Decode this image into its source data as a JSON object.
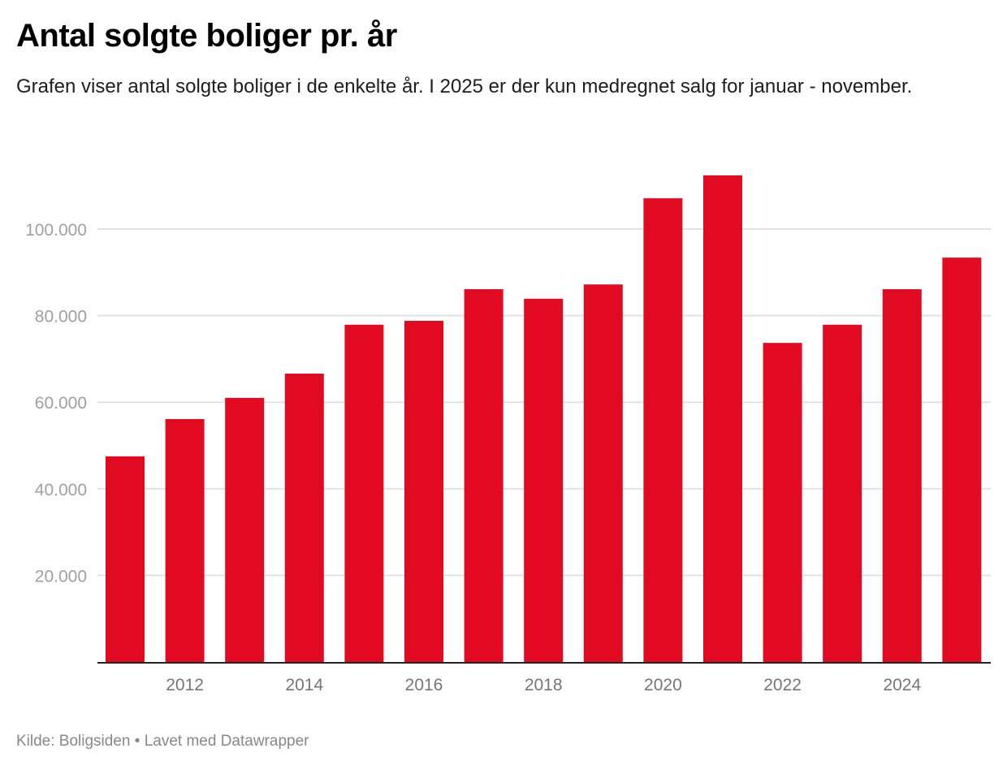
{
  "title": "Antal solgte boliger pr. år",
  "subtitle": "Grafen viser antal solgte boliger i de enkelte år. I 2025 er der kun medregnet salg for januar - november.",
  "footer": {
    "source": "Kilde: Boligsiden",
    "separator": "•",
    "credit": "Lavet med Datawrapper"
  },
  "colors": {
    "bar": "#e20a21",
    "grid": "#e2e2e2",
    "axis": "#222222"
  },
  "chart_data": {
    "type": "bar",
    "title": "Antal solgte boliger pr. år",
    "xlabel": "",
    "ylabel": "",
    "categories": [
      "2011",
      "2012",
      "2013",
      "2014",
      "2015",
      "2016",
      "2017",
      "2018",
      "2019",
      "2020",
      "2021",
      "2022",
      "2023",
      "2024",
      "2025"
    ],
    "values": [
      47500,
      56100,
      61000,
      66600,
      77900,
      78800,
      86100,
      83900,
      87200,
      107100,
      112400,
      73700,
      77900,
      86100,
      93400
    ],
    "ylim": [
      0,
      115000
    ],
    "yticks": [
      20000,
      40000,
      60000,
      80000,
      100000
    ],
    "ytick_labels": [
      "20.000",
      "40.000",
      "60.000",
      "80.000",
      "100.000"
    ],
    "xtick_labels": [
      "2012",
      "2014",
      "2016",
      "2018",
      "2020",
      "2022",
      "2024"
    ],
    "grid": true,
    "legend": "none"
  }
}
